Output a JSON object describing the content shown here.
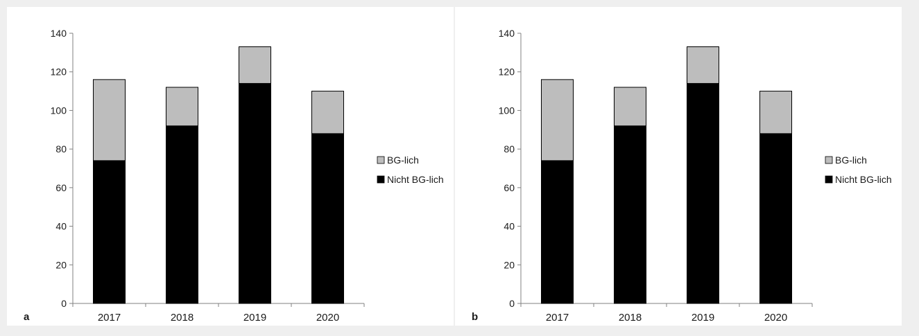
{
  "chart_data": [
    {
      "type": "bar",
      "stacked": true,
      "panel_label": "a",
      "categories": [
        "2017",
        "2018",
        "2019",
        "2020"
      ],
      "series": [
        {
          "name": "Nicht BG-lich",
          "values": [
            74,
            92,
            114,
            88
          ],
          "color": "#000000"
        },
        {
          "name": "BG-lich",
          "values": [
            42,
            20,
            19,
            22
          ],
          "color": "#bdbdbd"
        }
      ],
      "yticks": [
        0,
        20,
        40,
        60,
        80,
        100,
        120,
        140
      ],
      "ylim": [
        0,
        140
      ],
      "xlabel": "",
      "ylabel": "",
      "legend_position": "right",
      "legend_order": [
        "BG-lich",
        "Nicht BG-lich"
      ],
      "grid": false
    },
    {
      "type": "bar",
      "stacked": true,
      "panel_label": "b",
      "categories": [
        "2017",
        "2018",
        "2019",
        "2020"
      ],
      "series": [
        {
          "name": "Nicht BG-lich",
          "values": [
            74,
            92,
            114,
            88
          ],
          "color": "#000000"
        },
        {
          "name": "BG-lich",
          "values": [
            42,
            20,
            19,
            22
          ],
          "color": "#bdbdbd"
        }
      ],
      "yticks": [
        0,
        20,
        40,
        60,
        80,
        100,
        120,
        140
      ],
      "ylim": [
        0,
        140
      ],
      "xlabel": "",
      "ylabel": "",
      "legend_position": "right",
      "legend_order": [
        "BG-lich",
        "Nicht BG-lich"
      ],
      "grid": false
    }
  ]
}
